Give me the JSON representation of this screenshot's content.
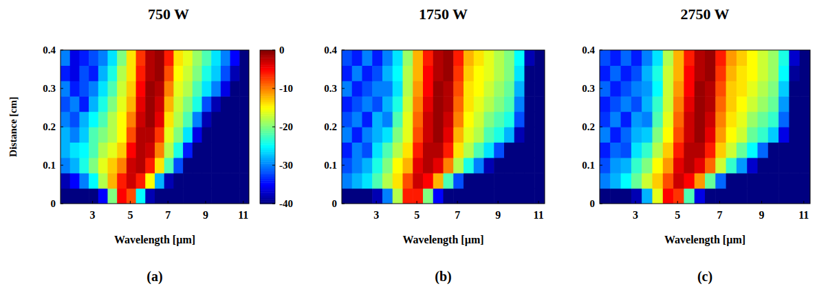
{
  "chart_data": [
    {
      "type": "heatmap",
      "title": "750 W",
      "annotations": [
        "(a)"
      ],
      "x_label": "Wavelength [µm]",
      "y_label": "Distance [cm]",
      "xlim": [
        1.3,
        11.3
      ],
      "xticks": [
        3,
        5,
        7,
        9,
        11
      ],
      "ylim": [
        0,
        0.4
      ],
      "yticks": [
        0,
        0.1,
        0.2,
        0.3,
        0.4
      ],
      "x_bins": [
        1.3,
        1.8,
        2.3,
        2.8,
        3.3,
        3.8,
        4.3,
        4.8,
        5.3,
        5.8,
        6.3,
        6.8,
        7.3,
        7.8,
        8.3,
        8.8,
        9.3,
        9.8,
        10.3,
        10.8,
        11.3
      ],
      "y_bins": [
        0,
        0.04,
        0.08,
        0.12,
        0.16,
        0.2,
        0.24,
        0.28,
        0.32,
        0.36,
        0.4
      ],
      "colorbar": {
        "lim": [
          -40,
          0
        ],
        "ticks": [
          0,
          -10,
          -20,
          -30,
          -40
        ]
      },
      "cells": [
        [
          -40,
          -40,
          -40,
          -40,
          -35,
          -20,
          -5,
          -8,
          -25,
          -38,
          -40,
          -40,
          -40,
          -40,
          -40,
          -40,
          -40,
          -40,
          -40,
          -40
        ],
        [
          -38,
          -35,
          -30,
          -25,
          -18,
          -12,
          -6,
          -3,
          -6,
          -15,
          -28,
          -38,
          -40,
          -40,
          -40,
          -40,
          -40,
          -40,
          -40,
          -40
        ],
        [
          -30,
          -28,
          -24,
          -20,
          -16,
          -13,
          -10,
          -3,
          -2,
          -6,
          -14,
          -22,
          -32,
          -40,
          -40,
          -40,
          -40,
          -40,
          -40,
          -40
        ],
        [
          -28,
          -26,
          -25,
          -22,
          -18,
          -16,
          -13,
          -5,
          -2,
          -3,
          -10,
          -18,
          -24,
          -34,
          -40,
          -40,
          -40,
          -40,
          -40,
          -40
        ],
        [
          -28,
          -30,
          -27,
          -22,
          -20,
          -18,
          -15,
          -8,
          -2,
          -2,
          -7,
          -16,
          -20,
          -26,
          -36,
          -40,
          -40,
          -40,
          -40,
          -40
        ],
        [
          -30,
          -32,
          -28,
          -25,
          -22,
          -18,
          -15,
          -10,
          -3,
          -1,
          -4,
          -14,
          -18,
          -22,
          -30,
          -38,
          -40,
          -40,
          -40,
          -40
        ],
        [
          -32,
          -30,
          -34,
          -28,
          -24,
          -20,
          -16,
          -12,
          -4,
          -1,
          -3,
          -12,
          -17,
          -20,
          -24,
          -32,
          -38,
          -40,
          -40,
          -40
        ],
        [
          -30,
          -34,
          -32,
          -30,
          -26,
          -22,
          -17,
          -13,
          -5,
          -1,
          -2,
          -10,
          -16,
          -18,
          -22,
          -26,
          -30,
          -36,
          -40,
          -40
        ],
        [
          -34,
          -36,
          -32,
          -34,
          -28,
          -24,
          -18,
          -14,
          -6,
          -2,
          -1,
          -8,
          -15,
          -17,
          -20,
          -24,
          -27,
          -32,
          -38,
          -40
        ],
        [
          -30,
          -36,
          -34,
          -32,
          -30,
          -26,
          -20,
          -14,
          -7,
          -2,
          -1,
          -6,
          -14,
          -16,
          -19,
          -22,
          -26,
          -30,
          -35,
          -40
        ]
      ]
    },
    {
      "type": "heatmap",
      "title": "1750 W",
      "annotations": [
        "(b)"
      ],
      "x_label": "Wavelength [µm]",
      "xlim": [
        1.3,
        11.3
      ],
      "xticks": [
        3,
        5,
        7,
        9,
        11
      ],
      "ylim": [
        0,
        0.4
      ],
      "yticks": [
        0,
        0.1,
        0.2,
        0.3,
        0.4
      ],
      "x_bins": [
        1.3,
        1.8,
        2.3,
        2.8,
        3.3,
        3.8,
        4.3,
        4.8,
        5.3,
        5.8,
        6.3,
        6.8,
        7.3,
        7.8,
        8.3,
        8.8,
        9.3,
        9.8,
        10.3,
        10.8,
        11.3
      ],
      "y_bins": [
        0,
        0.04,
        0.08,
        0.12,
        0.16,
        0.2,
        0.24,
        0.28,
        0.32,
        0.36,
        0.4
      ],
      "cells": [
        [
          -40,
          -40,
          -40,
          -38,
          -30,
          -18,
          -6,
          -6,
          -20,
          -35,
          -40,
          -40,
          -40,
          -40,
          -40,
          -40,
          -40,
          -40,
          -40,
          -40
        ],
        [
          -30,
          -28,
          -26,
          -22,
          -18,
          -14,
          -8,
          -3,
          -5,
          -12,
          -22,
          -32,
          -40,
          -40,
          -40,
          -40,
          -40,
          -40,
          -40,
          -40
        ],
        [
          -32,
          -30,
          -28,
          -24,
          -20,
          -15,
          -12,
          -4,
          -2,
          -4,
          -10,
          -18,
          -24,
          -30,
          -38,
          -40,
          -40,
          -40,
          -40,
          -40
        ],
        [
          -34,
          -30,
          -32,
          -26,
          -22,
          -18,
          -14,
          -6,
          -2,
          -2,
          -6,
          -14,
          -18,
          -22,
          -26,
          -32,
          -40,
          -40,
          -40,
          -40
        ],
        [
          -30,
          -34,
          -30,
          -28,
          -26,
          -20,
          -16,
          -8,
          -3,
          -1,
          -4,
          -12,
          -16,
          -18,
          -22,
          -24,
          -28,
          -38,
          -40,
          -40
        ],
        [
          -32,
          -30,
          -34,
          -28,
          -30,
          -22,
          -16,
          -9,
          -3,
          -1,
          -3,
          -10,
          -15,
          -17,
          -20,
          -22,
          -24,
          -32,
          -40,
          -40
        ],
        [
          -34,
          -32,
          -30,
          -32,
          -28,
          -24,
          -17,
          -10,
          -4,
          -1,
          -2,
          -9,
          -14,
          -16,
          -18,
          -20,
          -22,
          -30,
          -40,
          -40
        ],
        [
          -30,
          -34,
          -32,
          -30,
          -30,
          -26,
          -18,
          -11,
          -5,
          -1,
          -2,
          -8,
          -14,
          -15,
          -17,
          -19,
          -21,
          -28,
          -40,
          -40
        ],
        [
          -34,
          -30,
          -34,
          -32,
          -28,
          -25,
          -18,
          -12,
          -5,
          -2,
          -1,
          -7,
          -13,
          -15,
          -16,
          -18,
          -20,
          -26,
          -40,
          -40
        ],
        [
          -32,
          -34,
          -30,
          -34,
          -30,
          -26,
          -19,
          -12,
          -6,
          -2,
          -1,
          -6,
          -12,
          -14,
          -16,
          -18,
          -20,
          -25,
          -38,
          -40
        ]
      ]
    },
    {
      "type": "heatmap",
      "title": "2750 W",
      "annotations": [
        "(c)"
      ],
      "x_label": "Wavelength [µm]",
      "xlim": [
        1.3,
        11.3
      ],
      "xticks": [
        3,
        5,
        7,
        9,
        11
      ],
      "ylim": [
        0,
        0.4
      ],
      "yticks": [
        0,
        0.1,
        0.2,
        0.3,
        0.4
      ],
      "x_bins": [
        1.3,
        1.8,
        2.3,
        2.8,
        3.3,
        3.8,
        4.3,
        4.8,
        5.3,
        5.8,
        6.3,
        6.8,
        7.3,
        7.8,
        8.3,
        8.8,
        9.3,
        9.8,
        10.3,
        10.8,
        11.3
      ],
      "y_bins": [
        0,
        0.04,
        0.08,
        0.12,
        0.16,
        0.2,
        0.24,
        0.28,
        0.32,
        0.36,
        0.4
      ],
      "cells": [
        [
          -40,
          -40,
          -40,
          -38,
          -28,
          -16,
          -5,
          -7,
          -22,
          -36,
          -40,
          -40,
          -40,
          -40,
          -40,
          -40,
          -40,
          -40,
          -40,
          -40
        ],
        [
          -30,
          -28,
          -25,
          -21,
          -17,
          -13,
          -8,
          -3,
          -5,
          -11,
          -21,
          -31,
          -40,
          -40,
          -40,
          -40,
          -40,
          -40,
          -40,
          -40
        ],
        [
          -32,
          -29,
          -28,
          -23,
          -20,
          -15,
          -11,
          -4,
          -2,
          -4,
          -9,
          -17,
          -23,
          -29,
          -37,
          -40,
          -40,
          -40,
          -40,
          -40
        ],
        [
          -34,
          -31,
          -32,
          -26,
          -23,
          -18,
          -13,
          -6,
          -2,
          -2,
          -6,
          -13,
          -17,
          -21,
          -25,
          -31,
          -40,
          -40,
          -40,
          -40
        ],
        [
          -30,
          -34,
          -31,
          -28,
          -27,
          -20,
          -15,
          -8,
          -3,
          -1,
          -4,
          -11,
          -15,
          -17,
          -21,
          -23,
          -27,
          -36,
          -40,
          -40
        ],
        [
          -33,
          -30,
          -34,
          -29,
          -30,
          -22,
          -16,
          -9,
          -3,
          -1,
          -3,
          -10,
          -14,
          -16,
          -19,
          -21,
          -23,
          -31,
          -40,
          -40
        ],
        [
          -34,
          -32,
          -30,
          -32,
          -28,
          -23,
          -17,
          -10,
          -4,
          -1,
          -2,
          -9,
          -13,
          -15,
          -17,
          -19,
          -21,
          -29,
          -40,
          -40
        ],
        [
          -31,
          -34,
          -32,
          -30,
          -29,
          -25,
          -17,
          -11,
          -5,
          -1,
          -2,
          -8,
          -13,
          -14,
          -16,
          -18,
          -20,
          -27,
          -40,
          -40
        ],
        [
          -34,
          -31,
          -34,
          -32,
          -28,
          -24,
          -17,
          -12,
          -5,
          -2,
          -1,
          -7,
          -12,
          -14,
          -15,
          -17,
          -19,
          -25,
          -39,
          -40
        ],
        [
          -32,
          -34,
          -31,
          -34,
          -30,
          -26,
          -18,
          -12,
          -6,
          -2,
          -1,
          -6,
          -11,
          -13,
          -15,
          -17,
          -19,
          -24,
          -37,
          -40
        ]
      ]
    }
  ]
}
